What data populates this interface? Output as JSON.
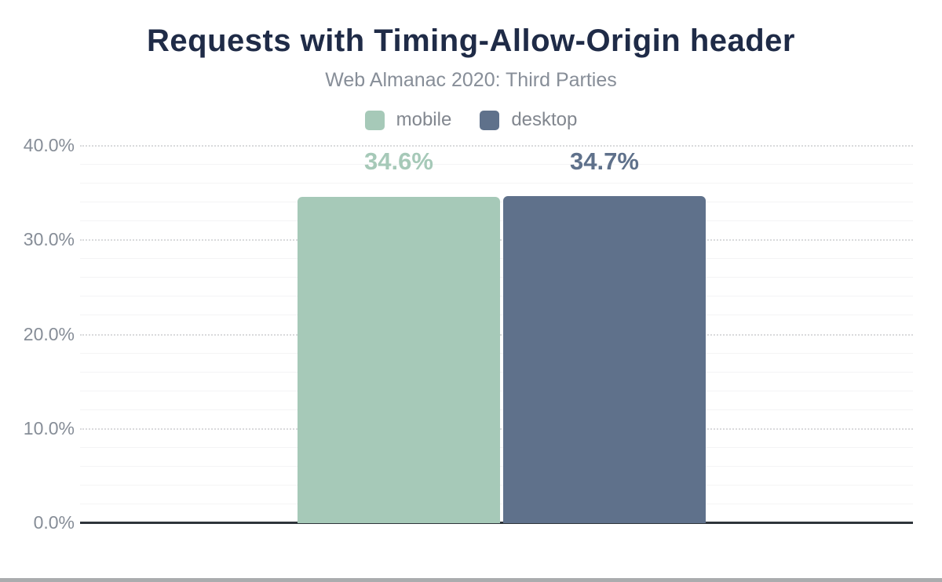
{
  "header": {
    "title": "Requests with Timing-Allow-Origin header",
    "subtitle": "Web Almanac 2020: Third Parties"
  },
  "chart_data": {
    "type": "bar",
    "title": "Requests with Timing-Allow-Origin header",
    "subtitle": "Web Almanac 2020: Third Parties",
    "categories": [
      "mobile",
      "desktop"
    ],
    "series": [
      {
        "name": "mobile",
        "value": 34.6,
        "value_label": "34.6%",
        "color": "#a6c9b8"
      },
      {
        "name": "desktop",
        "value": 34.7,
        "value_label": "34.7%",
        "color": "#5f718b"
      }
    ],
    "legend": {
      "position": "top-center",
      "entries": [
        {
          "label": "mobile",
          "color": "#a6c9b8"
        },
        {
          "label": "desktop",
          "color": "#5f718b"
        }
      ]
    },
    "xlabel": "",
    "ylabel": "",
    "ylim": [
      0,
      40
    ],
    "y_ticks": [
      {
        "value": 0,
        "label": "0.0%"
      },
      {
        "value": 10,
        "label": "10.0%"
      },
      {
        "value": 20,
        "label": "20.0%"
      },
      {
        "value": 30,
        "label": "30.0%"
      },
      {
        "value": 40,
        "label": "40.0%"
      }
    ],
    "grid": {
      "major_step": 10,
      "minor_step": 2,
      "major_style": "dotted",
      "minor_style": "solid"
    }
  },
  "colors": {
    "title": "#1f2b47",
    "subtitle": "#878e98",
    "axis_line": "#2e343b",
    "tick_label": "#868d97",
    "grid_major": "#d9dadc",
    "grid_minor": "#f4f4f5",
    "background": "#ffffff",
    "scrollbar": "#aaacae"
  }
}
